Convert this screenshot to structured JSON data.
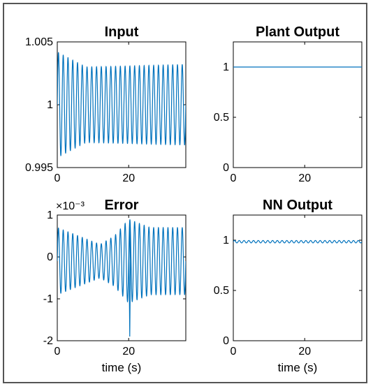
{
  "chart_data": [
    {
      "id": "input",
      "type": "line",
      "title": "Input",
      "xlabel": "",
      "ylabel": "",
      "exponent_label": "",
      "xlim": [
        0,
        36
      ],
      "ylim": [
        0.995,
        1.005
      ],
      "xticks": [
        0,
        20
      ],
      "xtick_labels": [
        "0",
        "20"
      ],
      "yticks": [
        0.995,
        1,
        1.005
      ],
      "ytick_labels": [
        "0.995",
        "1",
        "1.005"
      ],
      "grid": false,
      "series": [
        {
          "style": "oscillation",
          "x_start": 0,
          "x_end": 36,
          "cycles": 27,
          "center": 1.0,
          "amplitude_envelope": [
            [
              0,
              0.0042
            ],
            [
              8,
              0.003
            ],
            [
              36,
              0.0032
            ]
          ],
          "min_value": 0.9958,
          "max_value": 1.0043
        }
      ]
    },
    {
      "id": "plant-output",
      "type": "line",
      "title": "Plant Output",
      "xlabel": "",
      "ylabel": "",
      "exponent_label": "",
      "xlim": [
        0,
        36
      ],
      "ylim": [
        0,
        1.25
      ],
      "xticks": [
        0,
        20
      ],
      "xtick_labels": [
        "0",
        "20"
      ],
      "yticks": [
        0,
        0.5,
        1
      ],
      "ytick_labels": [
        "0",
        "0.5",
        "1"
      ],
      "grid": false,
      "series": [
        {
          "style": "constant",
          "x": [
            0,
            36
          ],
          "y": [
            1,
            1
          ]
        }
      ]
    },
    {
      "id": "error",
      "type": "line",
      "title": "Error",
      "xlabel": "time (s)",
      "ylabel": "",
      "exponent_label": "×10⁻³",
      "xlim": [
        0,
        36
      ],
      "ylim": [
        -2,
        1
      ],
      "xticks": [
        0,
        20
      ],
      "xtick_labels": [
        "0",
        "20"
      ],
      "yticks": [
        -2,
        -1,
        0,
        1
      ],
      "ytick_labels": [
        "-2",
        "-1",
        "0",
        "1"
      ],
      "grid": false,
      "series": [
        {
          "style": "oscillation",
          "x_start": 0,
          "x_end": 36,
          "cycles": 27,
          "center": -0.1,
          "amplitude_envelope": [
            [
              0,
              0.8
            ],
            [
              6,
              0.6
            ],
            [
              12,
              0.4
            ],
            [
              16,
              0.6
            ],
            [
              20,
              1.0
            ],
            [
              26,
              0.8
            ],
            [
              36,
              0.8
            ]
          ],
          "spike": {
            "x": 20.3,
            "y": -1.9
          },
          "min_value": -1.9,
          "max_value": 0.9
        }
      ]
    },
    {
      "id": "nn-output",
      "type": "line",
      "title": "NN Output",
      "xlabel": "time (s)",
      "ylabel": "",
      "exponent_label": "",
      "xlim": [
        0,
        36
      ],
      "ylim": [
        0,
        1.25
      ],
      "xticks": [
        0,
        20
      ],
      "xtick_labels": [
        "0",
        "20"
      ],
      "yticks": [
        0,
        0.5,
        1
      ],
      "ytick_labels": [
        "0",
        "0.5",
        "1"
      ],
      "grid": false,
      "series": [
        {
          "style": "oscillation",
          "x_start": 0,
          "x_end": 36,
          "cycles": 27,
          "center": 0.985,
          "amplitude_envelope": [
            [
              0,
              0.012
            ],
            [
              36,
              0.012
            ]
          ],
          "min_value": 0.973,
          "max_value": 0.997
        }
      ]
    }
  ],
  "colors": {
    "line": "#0072bd",
    "axis": "#000000",
    "frame": "#555555",
    "background": "#ffffff"
  }
}
